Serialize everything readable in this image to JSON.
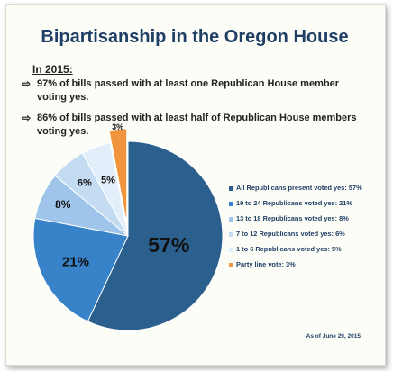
{
  "title": "Bipartisanship in the Oregon House",
  "year_label": "In 2015:",
  "bullets": [
    {
      "arrow": "⇨",
      "text": "97% of bills passed with at least one Republican House member voting yes."
    },
    {
      "arrow": "⇨",
      "text": "86% of bills passed with at least half of Republican House members voting yes."
    }
  ],
  "as_of": "As of June 29, 2015",
  "chart_data": {
    "type": "pie",
    "slices": [
      {
        "label": "57%",
        "value": 57,
        "legend": "All Republicans present voted yes: 57%",
        "color": "#2b5f8e"
      },
      {
        "label": "21%",
        "value": 21,
        "legend": "19 to 24 Republicans voted yes: 21%",
        "color": "#3782c8"
      },
      {
        "label": "8%",
        "value": 8,
        "legend": "13 to 18 Republicans voted yes: 8%",
        "color": "#9fc6ea"
      },
      {
        "label": "6%",
        "value": 6,
        "legend": "7 to 12 Republicans voted yes: 6%",
        "color": "#c4dcf2"
      },
      {
        "label": "5%",
        "value": 5,
        "legend": "1 to 6 Republicans voted yes: 5%",
        "color": "#e2eefa"
      },
      {
        "label": "3%",
        "value": 3,
        "legend": "Party line vote: 3%",
        "color": "#f0943d"
      }
    ]
  }
}
